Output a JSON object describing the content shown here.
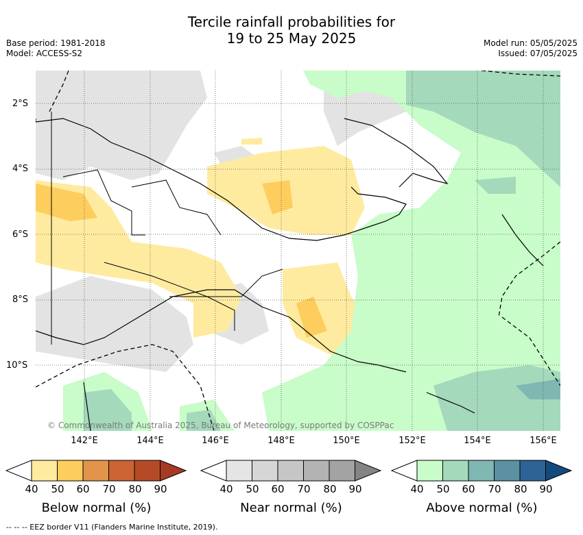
{
  "title_line1": "Tercile rainfall probabilities for",
  "title_line2": "19 to 25 May 2025",
  "base_period": "Base period: 1981-2018",
  "model": "Model: ACCESS-S2",
  "model_run": "Model run: 05/05/2025",
  "issued": "Issued: 07/05/2025",
  "latitudes": [
    "2°S",
    "4°S",
    "6°S",
    "8°S",
    "10°S"
  ],
  "longitudes": [
    "142°E",
    "144°E",
    "146°E",
    "148°E",
    "150°E",
    "152°E",
    "154°E",
    "156°E"
  ],
  "copyright": "© Commonwealth of Australia 2025, Bureau of Meteorology, supported by COSPPac",
  "colorbars": [
    {
      "label": "Below normal (%)",
      "colors": [
        "#ffeba0",
        "#fdcd5e",
        "#e2944a",
        "#cc6332",
        "#b44b26",
        "#a73a22"
      ]
    },
    {
      "label": "Near normal (%)",
      "colors": [
        "#e5e5e5",
        "#d6d6d6",
        "#c6c6c6",
        "#b3b3b3",
        "#a3a3a3",
        "#848484"
      ]
    },
    {
      "label": "Above normal (%)",
      "colors": [
        "#c8fcc9",
        "#a4d9bc",
        "#7fb7b2",
        "#5b91a0",
        "#2e6396",
        "#134a7e"
      ]
    }
  ],
  "ticks": [
    "40",
    "50",
    "60",
    "70",
    "80",
    "90"
  ],
  "footer": "--  --  -- EEZ border V11 (Flanders Marine Institute, 2019)."
}
